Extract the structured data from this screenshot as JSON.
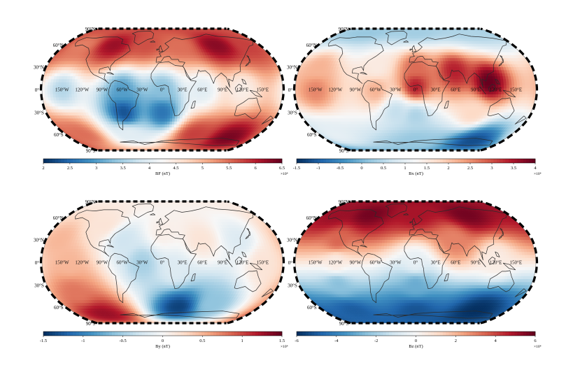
{
  "colors": {
    "map_border": "#000000",
    "coastline": "#2a2a2a",
    "low": "#053061",
    "mid": "#f7f7f7",
    "high": "#67001f"
  },
  "chart_data": [
    {
      "type": "heatmap",
      "projection": "robinson",
      "xlabel": "",
      "ylabel": "",
      "lat_labels": [
        "90°N",
        "60°N",
        "30°N",
        "0°",
        "30°S",
        "60°S",
        "90°S"
      ],
      "lon_labels": [
        "150°W",
        "120°W",
        "90°W",
        "60°W",
        "30°W",
        "0°",
        "30°E",
        "60°E",
        "90°E",
        "120°E",
        "150°E"
      ],
      "colorbar": {
        "label": "BF (nT)",
        "ticks": [
          "2",
          "2.5",
          "3",
          "3.5",
          "4",
          "4.5",
          "5",
          "5.5",
          "6",
          "6.5"
        ],
        "range": [
          2,
          6.5
        ],
        "multiplier": "×10⁴",
        "colormap": "RdBu_r"
      },
      "field": [
        {
          "lon": -150,
          "lat": 60,
          "value": 5.4
        },
        {
          "lon": -90,
          "lat": 60,
          "value": 6.2
        },
        {
          "lon": -30,
          "lat": 60,
          "value": 5.7
        },
        {
          "lon": 30,
          "lat": 60,
          "value": 5.5
        },
        {
          "lon": 100,
          "lat": 60,
          "value": 6.3
        },
        {
          "lon": 160,
          "lat": 60,
          "value": 5.8
        },
        {
          "lon": -150,
          "lat": 0,
          "value": 3.6
        },
        {
          "lon": -60,
          "lat": 0,
          "value": 3.0
        },
        {
          "lon": 0,
          "lat": 0,
          "value": 3.3
        },
        {
          "lon": 60,
          "lat": 0,
          "value": 4.0
        },
        {
          "lon": 120,
          "lat": 0,
          "value": 4.4
        },
        {
          "lon": -60,
          "lat": -30,
          "value": 2.3
        },
        {
          "lon": 0,
          "lat": -30,
          "value": 2.6
        },
        {
          "lon": -150,
          "lat": -60,
          "value": 5.5
        },
        {
          "lon": -60,
          "lat": -60,
          "value": 4.0
        },
        {
          "lon": 60,
          "lat": -60,
          "value": 5.8
        },
        {
          "lon": 130,
          "lat": -65,
          "value": 6.4
        }
      ]
    },
    {
      "type": "heatmap",
      "projection": "robinson",
      "xlabel": "",
      "ylabel": "",
      "lat_labels": [
        "90°N",
        "60°N",
        "30°N",
        "0°",
        "30°S",
        "60°S",
        "90°S"
      ],
      "lon_labels": [
        "150°W",
        "120°W",
        "90°W",
        "60°W",
        "30°W",
        "0°",
        "30°E",
        "60°E",
        "90°E",
        "120°E",
        "150°E"
      ],
      "colorbar": {
        "label": "Bx (nT)",
        "ticks": [
          "-1.5",
          "-1",
          "-0.5",
          "0",
          "0.5",
          "1",
          "1.5",
          "2",
          "2.5",
          "3",
          "3.5",
          "4"
        ],
        "range": [
          -1.5,
          4
        ],
        "multiplier": "×10⁴",
        "colormap": "RdBu_r"
      },
      "field": [
        {
          "lon": -120,
          "lat": 80,
          "value": 0.2
        },
        {
          "lon": 0,
          "lat": 80,
          "value": 0.3
        },
        {
          "lon": 120,
          "lat": 80,
          "value": 0.4
        },
        {
          "lon": -150,
          "lat": 30,
          "value": 2.2
        },
        {
          "lon": -60,
          "lat": 30,
          "value": 1.5
        },
        {
          "lon": 0,
          "lat": 30,
          "value": 2.8
        },
        {
          "lon": 60,
          "lat": 25,
          "value": 3.4
        },
        {
          "lon": 110,
          "lat": 10,
          "value": 4.0
        },
        {
          "lon": -150,
          "lat": 0,
          "value": 2.6
        },
        {
          "lon": -60,
          "lat": 0,
          "value": 2.2
        },
        {
          "lon": 0,
          "lat": 5,
          "value": 3.4
        },
        {
          "lon": -30,
          "lat": -30,
          "value": 0.6
        },
        {
          "lon": 0,
          "lat": -35,
          "value": 0.4
        },
        {
          "lon": 90,
          "lat": -30,
          "value": 1.8
        },
        {
          "lon": -150,
          "lat": -60,
          "value": 1.0
        },
        {
          "lon": 0,
          "lat": -70,
          "value": 0.2
        },
        {
          "lon": 120,
          "lat": -70,
          "value": -1.2
        }
      ]
    },
    {
      "type": "heatmap",
      "projection": "robinson",
      "xlabel": "",
      "ylabel": "",
      "lat_labels": [
        "90°N",
        "60°N",
        "30°N",
        "0°",
        "30°S",
        "60°S",
        "90°S"
      ],
      "lon_labels": [
        "150°W",
        "120°W",
        "90°W",
        "60°W",
        "30°W",
        "0°",
        "30°E",
        "60°E",
        "90°E",
        "120°E",
        "150°E"
      ],
      "colorbar": {
        "label": "By (nT)",
        "ticks": [
          "-1.5",
          "-1",
          "-0.5",
          "0",
          "0.5",
          "1",
          "1.5"
        ],
        "range": [
          -1.5,
          1.5
        ],
        "multiplier": "×10⁴",
        "colormap": "RdBu_r"
      },
      "field": [
        {
          "lon": -160,
          "lat": 30,
          "value": 0.5
        },
        {
          "lon": -140,
          "lat": 0,
          "value": 0.5
        },
        {
          "lon": -100,
          "lat": 50,
          "value": 0.2
        },
        {
          "lon": -60,
          "lat": 30,
          "value": -0.3
        },
        {
          "lon": -30,
          "lat": 0,
          "value": -0.5
        },
        {
          "lon": 0,
          "lat": 40,
          "value": 0.1
        },
        {
          "lon": 20,
          "lat": -10,
          "value": -0.2
        },
        {
          "lon": 60,
          "lat": 30,
          "value": 0.2
        },
        {
          "lon": 120,
          "lat": 30,
          "value": -0.2
        },
        {
          "lon": 150,
          "lat": 0,
          "value": 0.2
        },
        {
          "lon": -140,
          "lat": -40,
          "value": 0.8
        },
        {
          "lon": -120,
          "lat": -70,
          "value": 1.3
        },
        {
          "lon": 30,
          "lat": -60,
          "value": -1.4
        },
        {
          "lon": 90,
          "lat": -55,
          "value": -0.6
        }
      ]
    },
    {
      "type": "heatmap",
      "projection": "robinson",
      "xlabel": "",
      "ylabel": "",
      "lat_labels": [
        "90°N",
        "60°N",
        "30°N",
        "0°",
        "30°S",
        "60°S",
        "90°S"
      ],
      "lon_labels": [
        "150°W",
        "120°W",
        "90°W",
        "60°W",
        "30°W",
        "0°",
        "30°E",
        "60°E",
        "90°E",
        "120°E",
        "150°E"
      ],
      "colorbar": {
        "label": "Bz (nT)",
        "ticks": [
          "-6",
          "-4",
          "-2",
          "0",
          "2",
          "4",
          "6"
        ],
        "range": [
          -6,
          6
        ],
        "multiplier": "×10⁴",
        "colormap": "RdBu_r"
      },
      "field": [
        {
          "lon": -150,
          "lat": 65,
          "value": 5.2
        },
        {
          "lon": -90,
          "lat": 65,
          "value": 5.8
        },
        {
          "lon": 0,
          "lat": 65,
          "value": 5.0
        },
        {
          "lon": 100,
          "lat": 65,
          "value": 5.8
        },
        {
          "lon": -120,
          "lat": 30,
          "value": 3.5
        },
        {
          "lon": 60,
          "lat": 30,
          "value": 3.0
        },
        {
          "lon": -120,
          "lat": 0,
          "value": 0.5
        },
        {
          "lon": 0,
          "lat": 0,
          "value": -0.5
        },
        {
          "lon": 120,
          "lat": 5,
          "value": 0.5
        },
        {
          "lon": -120,
          "lat": -30,
          "value": -2.5
        },
        {
          "lon": 0,
          "lat": -30,
          "value": -3.0
        },
        {
          "lon": -120,
          "lat": -65,
          "value": -5.0
        },
        {
          "lon": 0,
          "lat": -65,
          "value": -5.2
        },
        {
          "lon": 120,
          "lat": -65,
          "value": -6.0
        }
      ]
    }
  ]
}
